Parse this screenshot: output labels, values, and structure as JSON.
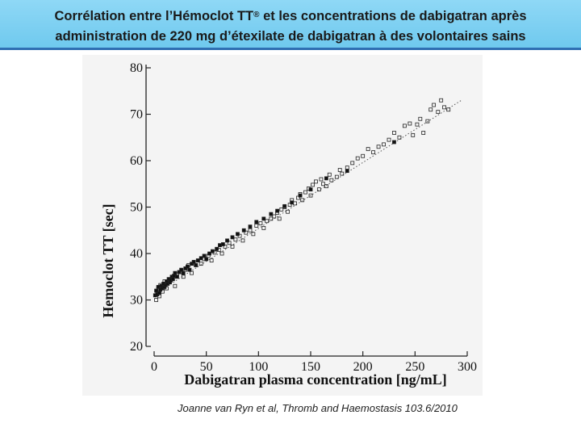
{
  "header": {
    "title_line1_pre": "Corrélation entre l’Hémoclot TT",
    "title_line1_sup": "®",
    "title_line1_post": " et les concentrations de dabigatran après",
    "title_line2": "administration de 220 mg d’étexilate de dabigatran à des volontaires sains"
  },
  "citation": "Joanne van Ryn et al, Thromb and Haemostasis 103.6/2010",
  "colors": {
    "header_bg": "#7fd0f2",
    "header_border": "#2f6fb3"
  },
  "chart_data": {
    "type": "scatter",
    "title": "",
    "xlabel": "Dabigatran plasma concentration [ng/mL]",
    "ylabel": "Hemoclot TT [sec]",
    "xlim": [
      0,
      300
    ],
    "ylim": [
      20,
      80
    ],
    "xticks": [
      "0",
      "50",
      "100",
      "150",
      "200",
      "250",
      "300"
    ],
    "yticks": [
      "20",
      "30",
      "40",
      "50",
      "60",
      "70",
      "80"
    ],
    "grid": false,
    "trendline": {
      "slope": 0.142,
      "intercept": 31.2
    },
    "series": [
      {
        "marker": "open-square",
        "points": [
          [
            2,
            30.0
          ],
          [
            3,
            31.5
          ],
          [
            4,
            32.5
          ],
          [
            5,
            30.8
          ],
          [
            6,
            33.2
          ],
          [
            8,
            31.8
          ],
          [
            10,
            34.0
          ],
          [
            12,
            32.5
          ],
          [
            15,
            33.8
          ],
          [
            18,
            34.8
          ],
          [
            20,
            33.0
          ],
          [
            22,
            35.5
          ],
          [
            25,
            36.0
          ],
          [
            28,
            35.0
          ],
          [
            30,
            36.5
          ],
          [
            33,
            37.5
          ],
          [
            36,
            35.8
          ],
          [
            40,
            37.5
          ],
          [
            42,
            38.5
          ],
          [
            45,
            37.8
          ],
          [
            48,
            38.8
          ],
          [
            52,
            39.5
          ],
          [
            55,
            38.5
          ],
          [
            58,
            40.2
          ],
          [
            62,
            40.8
          ],
          [
            65,
            40.0
          ],
          [
            68,
            41.5
          ],
          [
            72,
            42.3
          ],
          [
            75,
            41.5
          ],
          [
            78,
            43.0
          ],
          [
            82,
            43.8
          ],
          [
            85,
            42.8
          ],
          [
            88,
            44.5
          ],
          [
            92,
            45.0
          ],
          [
            95,
            44.2
          ],
          [
            98,
            46.0
          ],
          [
            102,
            46.5
          ],
          [
            105,
            45.5
          ],
          [
            108,
            47.0
          ],
          [
            112,
            47.5
          ],
          [
            115,
            48.0
          ],
          [
            118,
            48.8
          ],
          [
            120,
            47.5
          ],
          [
            122,
            49.5
          ],
          [
            125,
            50.0
          ],
          [
            128,
            49.0
          ],
          [
            130,
            50.5
          ],
          [
            132,
            51.5
          ],
          [
            135,
            50.8
          ],
          [
            138,
            52.0
          ],
          [
            140,
            52.8
          ],
          [
            142,
            51.5
          ],
          [
            145,
            53.2
          ],
          [
            148,
            54.0
          ],
          [
            150,
            52.5
          ],
          [
            152,
            54.8
          ],
          [
            155,
            55.5
          ],
          [
            158,
            53.8
          ],
          [
            160,
            56.0
          ],
          [
            162,
            55.0
          ],
          [
            165,
            54.5
          ],
          [
            168,
            57.0
          ],
          [
            170,
            55.8
          ],
          [
            175,
            56.5
          ],
          [
            178,
            58.0
          ],
          [
            180,
            57.2
          ],
          [
            185,
            58.5
          ],
          [
            190,
            59.5
          ],
          [
            195,
            60.5
          ],
          [
            200,
            61.0
          ],
          [
            205,
            62.5
          ],
          [
            210,
            61.8
          ],
          [
            215,
            63.0
          ],
          [
            220,
            63.5
          ],
          [
            225,
            64.5
          ],
          [
            230,
            66.0
          ],
          [
            235,
            65.0
          ],
          [
            240,
            67.5
          ],
          [
            245,
            68.0
          ],
          [
            248,
            65.5
          ],
          [
            252,
            67.8
          ],
          [
            255,
            69.0
          ],
          [
            258,
            66.0
          ],
          [
            262,
            68.5
          ],
          [
            265,
            71.0
          ],
          [
            268,
            72.0
          ],
          [
            272,
            70.5
          ],
          [
            275,
            73.0
          ],
          [
            278,
            71.5
          ],
          [
            282,
            71.0
          ]
        ]
      },
      {
        "marker": "filled-square",
        "points": [
          [
            1,
            31.0
          ],
          [
            2,
            32.0
          ],
          [
            3,
            31.2
          ],
          [
            4,
            32.8
          ],
          [
            5,
            31.5
          ],
          [
            6,
            32.2
          ],
          [
            7,
            33.0
          ],
          [
            8,
            32.5
          ],
          [
            9,
            33.5
          ],
          [
            10,
            32.8
          ],
          [
            11,
            33.2
          ],
          [
            12,
            34.0
          ],
          [
            13,
            33.5
          ],
          [
            14,
            34.5
          ],
          [
            15,
            33.8
          ],
          [
            16,
            34.2
          ],
          [
            17,
            35.0
          ],
          [
            18,
            34.5
          ],
          [
            19,
            35.2
          ],
          [
            20,
            35.8
          ],
          [
            22,
            35.0
          ],
          [
            24,
            36.0
          ],
          [
            26,
            36.5
          ],
          [
            28,
            35.8
          ],
          [
            30,
            36.8
          ],
          [
            32,
            37.2
          ],
          [
            34,
            36.5
          ],
          [
            36,
            37.8
          ],
          [
            38,
            38.2
          ],
          [
            40,
            37.5
          ],
          [
            42,
            38.5
          ],
          [
            45,
            39.0
          ],
          [
            48,
            39.5
          ],
          [
            50,
            38.8
          ],
          [
            53,
            40.0
          ],
          [
            56,
            40.5
          ],
          [
            60,
            41.0
          ],
          [
            63,
            41.8
          ],
          [
            66,
            42.0
          ],
          [
            70,
            42.8
          ],
          [
            75,
            43.5
          ],
          [
            80,
            44.2
          ],
          [
            86,
            45.0
          ],
          [
            92,
            45.8
          ],
          [
            98,
            46.8
          ],
          [
            105,
            47.5
          ],
          [
            112,
            48.5
          ],
          [
            118,
            49.2
          ],
          [
            125,
            50.2
          ],
          [
            132,
            51.0
          ],
          [
            140,
            52.5
          ],
          [
            150,
            53.8
          ],
          [
            165,
            56.2
          ],
          [
            185,
            57.8
          ],
          [
            230,
            64.0
          ]
        ]
      }
    ]
  }
}
